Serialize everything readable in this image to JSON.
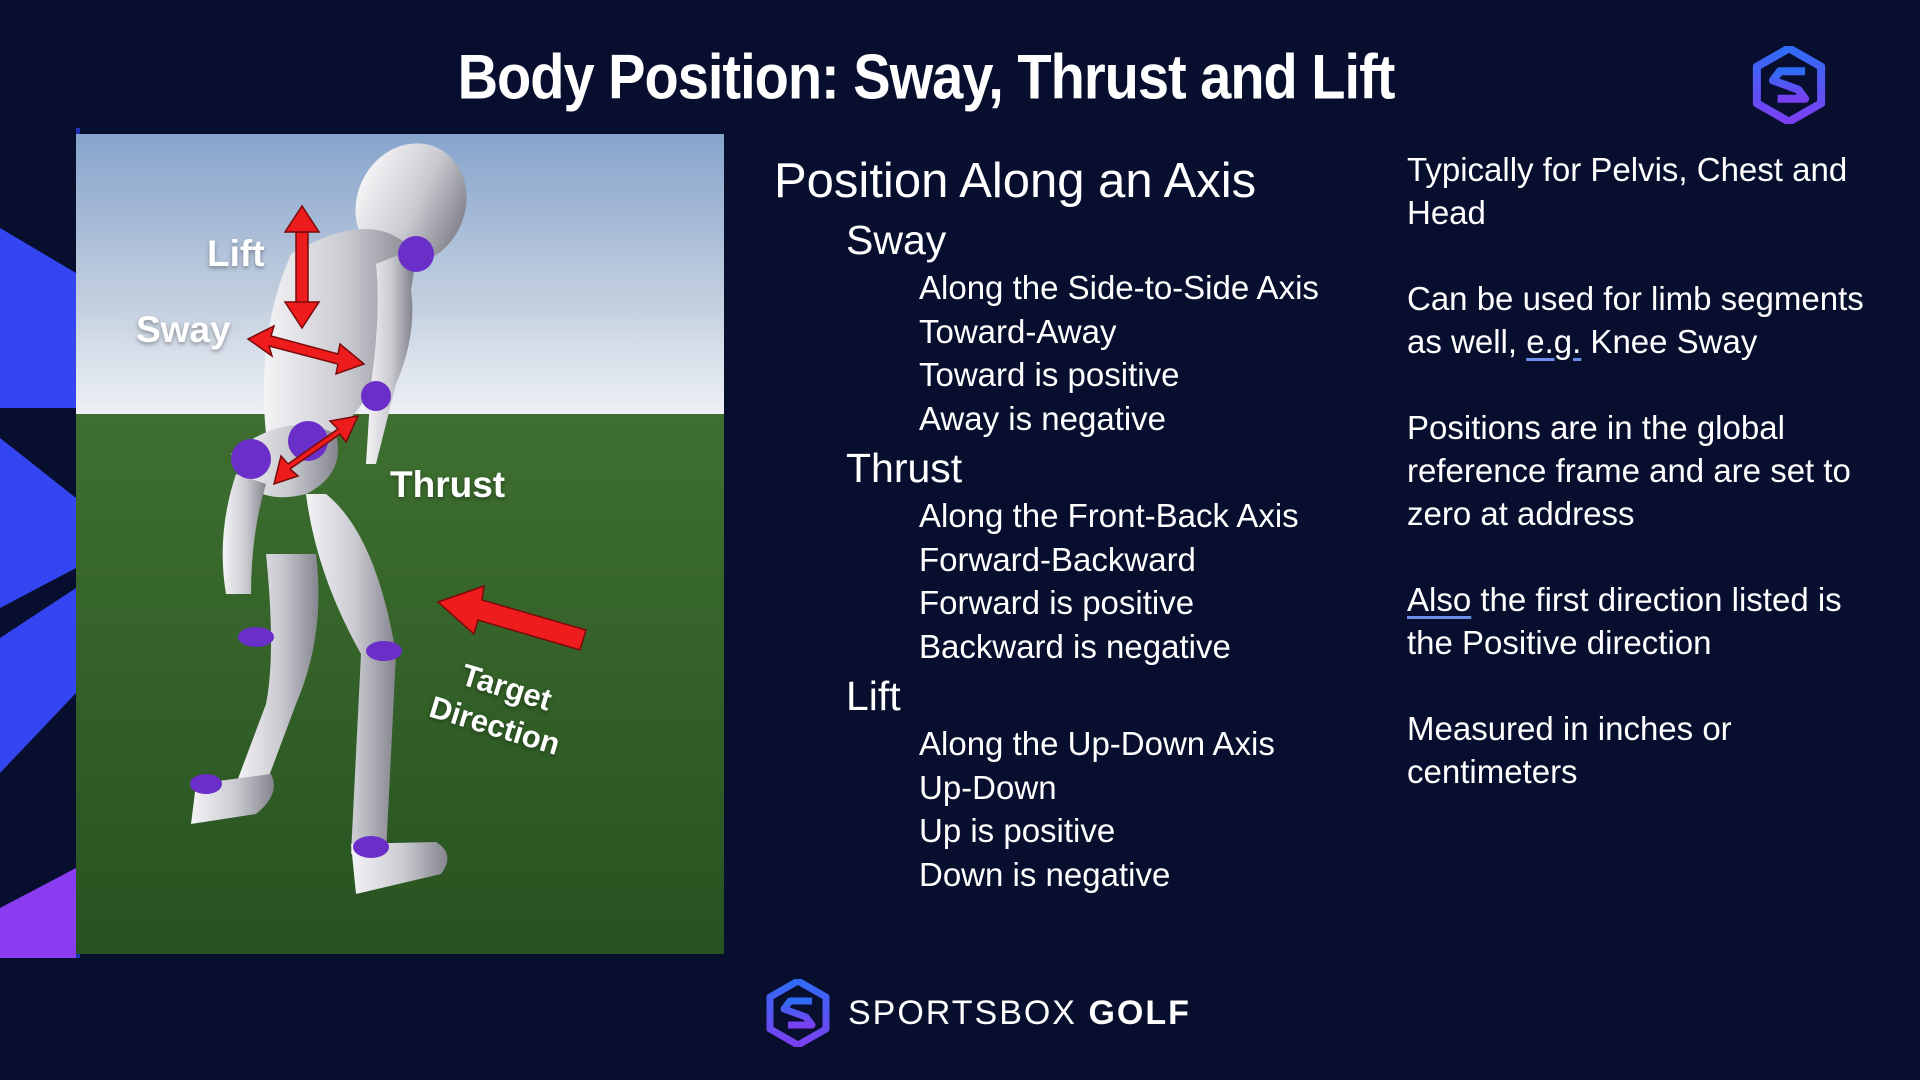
{
  "title": "Body Position: Sway, Thrust and Lift",
  "figure": {
    "labels": {
      "lift": "Lift",
      "sway": "Sway",
      "thrust": "Thrust",
      "target_line1": "Target",
      "target_line2": "Direction"
    }
  },
  "outline": {
    "heading": "Position Along an Axis",
    "sections": [
      {
        "label": "Sway",
        "items": [
          "Along the Side-to-Side Axis",
          "Toward-Away",
          "Toward is positive",
          "Away is negative"
        ]
      },
      {
        "label": "Thrust",
        "items": [
          "Along the Front-Back Axis",
          "Forward-Backward",
          "Forward is positive",
          "Backward is negative"
        ]
      },
      {
        "label": "Lift",
        "items": [
          "Along the Up-Down Axis",
          "Up-Down",
          "Up is positive",
          "Down is negative"
        ]
      }
    ]
  },
  "notes": {
    "n1": "Typically for Pelvis, Chest and Head",
    "n2_pre": "Can be used for limb segments as well, ",
    "n2_eg": "e.g.",
    "n2_post": " Knee Sway",
    "n3": "Positions are in the global reference frame and are set to zero at address",
    "n4_also": "Also",
    "n4_post": " the first direction listed is the Positive direction",
    "n5": "Measured in inches or centimeters"
  },
  "footer": {
    "brand_light": "SPORTSBOX",
    "brand_bold": "GOLF"
  },
  "icons": {
    "corner": "sportsbox-logo-icon",
    "footer": "sportsbox-logo-icon"
  },
  "colors": {
    "background": "#080f2e",
    "accent_blue": "#3d4cf5",
    "accent_purple": "#8a3df0",
    "arrow_red": "#ee1c1c",
    "grass": "#2e5c24",
    "joint_purple": "#6a2fc9"
  }
}
